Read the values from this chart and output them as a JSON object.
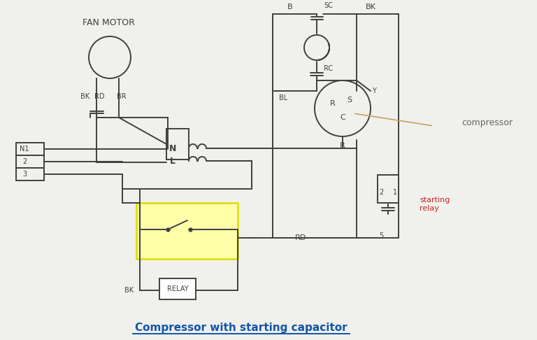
{
  "bg_color": "#f0f0ec",
  "line_color": "#404040",
  "title": "Compressor with starting capacitor",
  "title_color": "#1155aa",
  "title_fontsize": 11,
  "compressor_label": "compressor",
  "compressor_label_color": "#666666",
  "relay_box_fill": "#ffffaa",
  "relay_box_edge": "#dddd00",
  "fan_motor_label": "FAN MOTOR",
  "starting_relay_label": "starting\nrelay",
  "starting_relay_color": "#cc2222",
  "lw": 1.4
}
